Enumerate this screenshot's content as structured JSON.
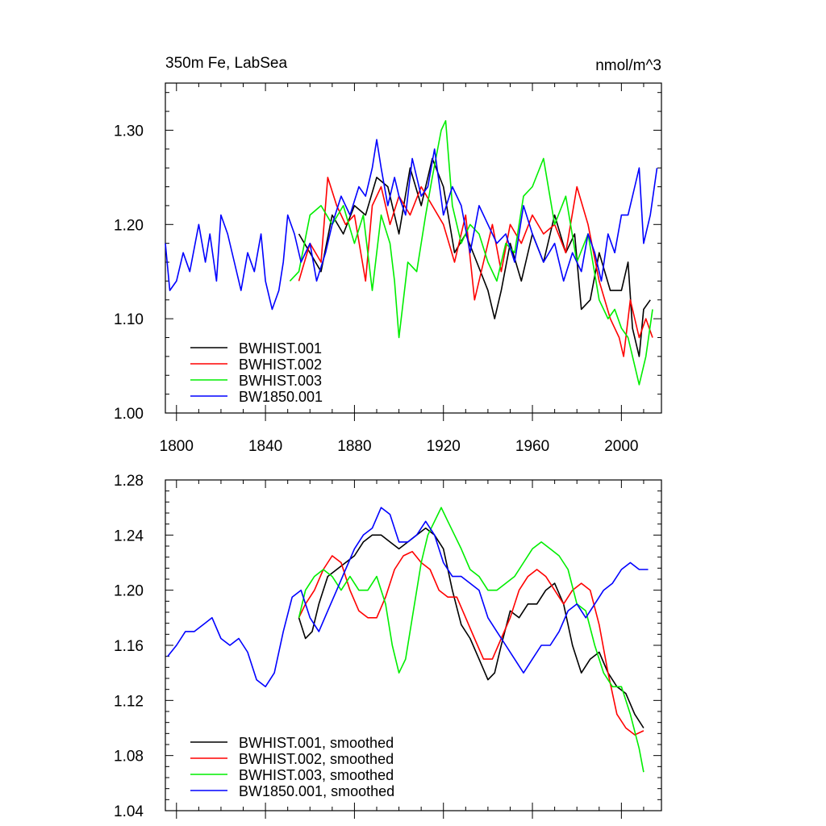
{
  "chart_data": [
    {
      "type": "line",
      "title_left": "350m Fe, LabSea",
      "title_right": "nmol/m^3",
      "xlim": [
        1795,
        2018
      ],
      "ylim": [
        1.0,
        1.35
      ],
      "x_ticks": [
        1800,
        1840,
        1880,
        1920,
        1960,
        2000
      ],
      "y_ticks": [
        1.0,
        1.1,
        1.2,
        1.3
      ],
      "y_tick_labels": [
        "1.00",
        "1.10",
        "1.20",
        "1.30"
      ],
      "legend_position": "bottom-left",
      "series": [
        {
          "name": "BWHIST.001",
          "color": "#000000",
          "x": [
            1855,
            1860,
            1865,
            1870,
            1875,
            1880,
            1885,
            1890,
            1895,
            1900,
            1905,
            1910,
            1915,
            1920,
            1925,
            1930,
            1935,
            1940,
            1943,
            1946,
            1950,
            1955,
            1960,
            1965,
            1970,
            1975,
            1979,
            1982,
            1986,
            1990,
            1995,
            2000,
            2003,
            2005,
            2008,
            2010,
            2013
          ],
          "values": [
            1.19,
            1.17,
            1.15,
            1.21,
            1.19,
            1.22,
            1.21,
            1.25,
            1.24,
            1.19,
            1.26,
            1.22,
            1.27,
            1.24,
            1.17,
            1.19,
            1.16,
            1.13,
            1.1,
            1.13,
            1.18,
            1.14,
            1.19,
            1.16,
            1.21,
            1.17,
            1.19,
            1.11,
            1.12,
            1.17,
            1.13,
            1.13,
            1.16,
            1.09,
            1.06,
            1.11,
            1.12
          ]
        },
        {
          "name": "BWHIST.002",
          "color": "#ff0000",
          "x": [
            1855,
            1860,
            1865,
            1868,
            1872,
            1876,
            1880,
            1885,
            1888,
            1892,
            1896,
            1900,
            1905,
            1910,
            1915,
            1920,
            1925,
            1930,
            1934,
            1938,
            1942,
            1946,
            1950,
            1955,
            1960,
            1965,
            1970,
            1975,
            1980,
            1985,
            1990,
            1995,
            1999,
            2001,
            2004,
            2008,
            2011,
            2014
          ],
          "values": [
            1.14,
            1.18,
            1.16,
            1.25,
            1.22,
            1.2,
            1.21,
            1.14,
            1.22,
            1.24,
            1.2,
            1.23,
            1.21,
            1.24,
            1.22,
            1.2,
            1.16,
            1.21,
            1.12,
            1.16,
            1.2,
            1.15,
            1.2,
            1.18,
            1.21,
            1.19,
            1.2,
            1.17,
            1.24,
            1.2,
            1.14,
            1.1,
            1.08,
            1.06,
            1.12,
            1.08,
            1.1,
            1.08
          ]
        },
        {
          "name": "BWHIST.003",
          "color": "#00ee00",
          "x": [
            1851,
            1855,
            1860,
            1865,
            1870,
            1875,
            1880,
            1884,
            1888,
            1892,
            1896,
            1898,
            1900,
            1904,
            1908,
            1912,
            1915,
            1919,
            1921,
            1924,
            1928,
            1932,
            1936,
            1940,
            1944,
            1948,
            1952,
            1956,
            1960,
            1965,
            1970,
            1975,
            1980,
            1985,
            1990,
            1994,
            1997,
            2000,
            2003,
            2006,
            2008,
            2011,
            2014
          ],
          "values": [
            1.14,
            1.15,
            1.21,
            1.22,
            1.2,
            1.22,
            1.18,
            1.21,
            1.13,
            1.21,
            1.18,
            1.14,
            1.08,
            1.16,
            1.15,
            1.21,
            1.25,
            1.3,
            1.31,
            1.22,
            1.18,
            1.2,
            1.19,
            1.16,
            1.14,
            1.18,
            1.17,
            1.23,
            1.24,
            1.27,
            1.2,
            1.23,
            1.16,
            1.19,
            1.12,
            1.1,
            1.11,
            1.09,
            1.08,
            1.05,
            1.03,
            1.06,
            1.11
          ]
        },
        {
          "name": "BW1850.001",
          "color": "#0000ff",
          "x": [
            1795,
            1797,
            1800,
            1803,
            1806,
            1810,
            1813,
            1815,
            1818,
            1820,
            1823,
            1826,
            1829,
            1832,
            1835,
            1838,
            1840,
            1843,
            1846,
            1848,
            1850,
            1853,
            1856,
            1860,
            1863,
            1867,
            1870,
            1874,
            1878,
            1882,
            1885,
            1888,
            1890,
            1892,
            1895,
            1898,
            1900,
            1903,
            1906,
            1910,
            1913,
            1916,
            1920,
            1924,
            1928,
            1932,
            1936,
            1940,
            1944,
            1948,
            1952,
            1956,
            1960,
            1965,
            1970,
            1974,
            1978,
            1982,
            1985,
            1988,
            1991,
            1994,
            1997,
            2000,
            2003,
            2006,
            2008,
            2010,
            2013,
            2016
          ],
          "values": [
            1.18,
            1.13,
            1.14,
            1.17,
            1.15,
            1.2,
            1.16,
            1.19,
            1.14,
            1.21,
            1.19,
            1.16,
            1.13,
            1.17,
            1.15,
            1.19,
            1.14,
            1.11,
            1.13,
            1.16,
            1.21,
            1.19,
            1.16,
            1.18,
            1.14,
            1.17,
            1.2,
            1.23,
            1.21,
            1.24,
            1.23,
            1.26,
            1.29,
            1.26,
            1.22,
            1.25,
            1.23,
            1.21,
            1.27,
            1.23,
            1.24,
            1.28,
            1.21,
            1.24,
            1.22,
            1.17,
            1.22,
            1.2,
            1.18,
            1.19,
            1.16,
            1.22,
            1.19,
            1.16,
            1.18,
            1.14,
            1.17,
            1.15,
            1.19,
            1.17,
            1.14,
            1.19,
            1.17,
            1.21,
            1.21,
            1.24,
            1.26,
            1.18,
            1.21,
            1.26
          ]
        }
      ]
    },
    {
      "type": "line",
      "xlim": [
        1795,
        2018
      ],
      "ylim": [
        1.04,
        1.28
      ],
      "x_ticks": [
        1800,
        1840,
        1880,
        1920,
        1960,
        2000
      ],
      "y_ticks": [
        1.04,
        1.08,
        1.12,
        1.16,
        1.2,
        1.24,
        1.28
      ],
      "y_tick_labels": [
        "1.04",
        "1.08",
        "1.12",
        "1.16",
        "1.20",
        "1.24",
        "1.28"
      ],
      "legend_position": "bottom-left",
      "series": [
        {
          "name": "BWHIST.001, smoothed",
          "color": "#000000",
          "x": [
            1855,
            1858,
            1861,
            1864,
            1868,
            1872,
            1876,
            1880,
            1884,
            1888,
            1892,
            1896,
            1900,
            1904,
            1908,
            1912,
            1916,
            1920,
            1924,
            1928,
            1932,
            1936,
            1940,
            1943,
            1946,
            1950,
            1954,
            1958,
            1962,
            1966,
            1970,
            1974,
            1978,
            1982,
            1986,
            1990,
            1994,
            1998,
            2002,
            2006,
            2010
          ],
          "values": [
            1.18,
            1.165,
            1.17,
            1.19,
            1.21,
            1.215,
            1.22,
            1.225,
            1.235,
            1.24,
            1.24,
            1.235,
            1.23,
            1.235,
            1.24,
            1.245,
            1.24,
            1.23,
            1.2,
            1.175,
            1.165,
            1.15,
            1.135,
            1.14,
            1.16,
            1.185,
            1.18,
            1.19,
            1.19,
            1.2,
            1.205,
            1.19,
            1.16,
            1.14,
            1.15,
            1.155,
            1.14,
            1.13,
            1.125,
            1.11,
            1.1
          ]
        },
        {
          "name": "BWHIST.002, smoothed",
          "color": "#ff0000",
          "x": [
            1855,
            1858,
            1862,
            1866,
            1870,
            1874,
            1878,
            1882,
            1886,
            1890,
            1894,
            1898,
            1902,
            1906,
            1910,
            1914,
            1918,
            1922,
            1926,
            1930,
            1934,
            1938,
            1942,
            1946,
            1950,
            1954,
            1958,
            1962,
            1966,
            1970,
            1974,
            1978,
            1982,
            1986,
            1990,
            1994,
            1998,
            2002,
            2006,
            2010
          ],
          "values": [
            1.18,
            1.19,
            1.2,
            1.215,
            1.225,
            1.22,
            1.2,
            1.185,
            1.18,
            1.18,
            1.195,
            1.215,
            1.225,
            1.228,
            1.22,
            1.215,
            1.2,
            1.195,
            1.195,
            1.18,
            1.165,
            1.15,
            1.15,
            1.165,
            1.18,
            1.2,
            1.21,
            1.215,
            1.21,
            1.2,
            1.19,
            1.2,
            1.205,
            1.2,
            1.175,
            1.14,
            1.11,
            1.1,
            1.095,
            1.098
          ]
        },
        {
          "name": "BWHIST.003, smoothed",
          "color": "#00ee00",
          "x": [
            1855,
            1858,
            1862,
            1866,
            1870,
            1874,
            1878,
            1882,
            1886,
            1890,
            1894,
            1897,
            1900,
            1903,
            1906,
            1910,
            1913,
            1916,
            1919,
            1922,
            1925,
            1928,
            1932,
            1936,
            1940,
            1944,
            1948,
            1952,
            1956,
            1960,
            1964,
            1968,
            1972,
            1976,
            1980,
            1984,
            1988,
            1992,
            1996,
            2000,
            2004,
            2008,
            2010
          ],
          "values": [
            1.18,
            1.2,
            1.21,
            1.215,
            1.21,
            1.2,
            1.21,
            1.2,
            1.2,
            1.21,
            1.19,
            1.16,
            1.14,
            1.15,
            1.18,
            1.22,
            1.24,
            1.25,
            1.26,
            1.25,
            1.24,
            1.23,
            1.215,
            1.21,
            1.2,
            1.2,
            1.205,
            1.21,
            1.22,
            1.23,
            1.235,
            1.23,
            1.225,
            1.215,
            1.19,
            1.185,
            1.16,
            1.14,
            1.13,
            1.13,
            1.11,
            1.085,
            1.068
          ]
        },
        {
          "name": "BW1850.001, smoothed",
          "color": "#0000ff",
          "x": [
            1796,
            1800,
            1804,
            1808,
            1812,
            1816,
            1820,
            1824,
            1828,
            1832,
            1836,
            1840,
            1844,
            1848,
            1852,
            1856,
            1860,
            1864,
            1868,
            1872,
            1876,
            1880,
            1884,
            1888,
            1892,
            1896,
            1900,
            1904,
            1908,
            1912,
            1916,
            1920,
            1924,
            1928,
            1932,
            1936,
            1940,
            1944,
            1948,
            1952,
            1956,
            1960,
            1964,
            1968,
            1972,
            1976,
            1980,
            1984,
            1988,
            1992,
            1996,
            2000,
            2004,
            2008,
            2012
          ],
          "values": [
            1.152,
            1.16,
            1.17,
            1.17,
            1.175,
            1.18,
            1.165,
            1.16,
            1.165,
            1.155,
            1.135,
            1.13,
            1.14,
            1.17,
            1.195,
            1.2,
            1.18,
            1.17,
            1.185,
            1.2,
            1.215,
            1.23,
            1.24,
            1.245,
            1.26,
            1.255,
            1.235,
            1.235,
            1.24,
            1.25,
            1.24,
            1.22,
            1.21,
            1.21,
            1.205,
            1.2,
            1.18,
            1.17,
            1.16,
            1.15,
            1.14,
            1.15,
            1.16,
            1.16,
            1.17,
            1.185,
            1.19,
            1.18,
            1.19,
            1.2,
            1.205,
            1.215,
            1.22,
            1.215,
            1.215
          ]
        }
      ]
    }
  ]
}
